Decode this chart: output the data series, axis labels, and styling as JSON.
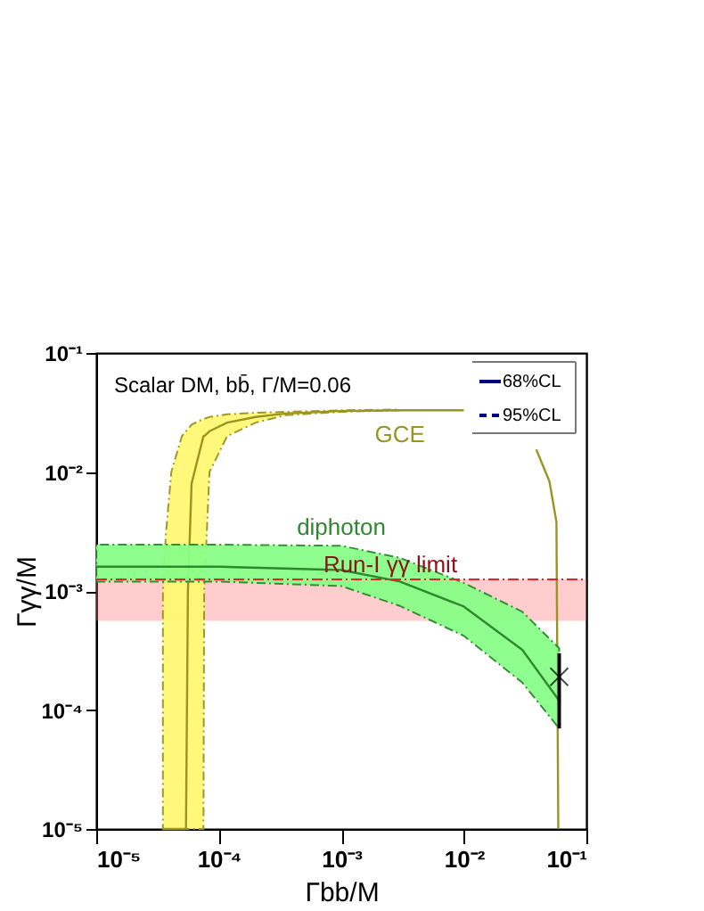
{
  "chart_data": {
    "type": "line",
    "xlabel": "Γbb/M",
    "ylabel": "Γγγ/M",
    "log": "xy",
    "xlim": [
      1e-05,
      0.1
    ],
    "ylim": [
      1e-05,
      0.1
    ],
    "xticks": [
      {
        "value": 1e-05,
        "label": "10⁻⁵"
      },
      {
        "value": 0.0001,
        "label": "10⁻⁴"
      },
      {
        "value": 0.001,
        "label": "10⁻³"
      },
      {
        "value": 0.01,
        "label": "10⁻²"
      },
      {
        "value": 0.1,
        "label": "10⁻¹"
      }
    ],
    "yticks": [
      {
        "value": 1e-05,
        "label": "10⁻⁵"
      },
      {
        "value": 0.0001,
        "label": "10⁻⁴"
      },
      {
        "value": 0.001,
        "label": "10⁻³"
      },
      {
        "value": 0.01,
        "label": "10⁻²"
      },
      {
        "value": 0.1,
        "label": "10⁻¹"
      }
    ],
    "series": [
      {
        "name": "GCE",
        "color": "#9a9422",
        "x": [
          3.5e-05,
          3.7e-05,
          4.1e-05,
          5e-05,
          5.4e-05,
          5.6e-05,
          6e-05,
          7.5e-05,
          7.6e-05,
          8.4e-05,
          0.000117,
          0.0002,
          0.00035,
          0.001,
          0.003,
          0.01,
          0.025,
          0.039,
          0.05,
          0.057,
          0.059
        ],
        "values": [
          1e-05,
          1e-05,
          1e-05,
          1e-05,
          1e-05,
          0.001,
          0.008,
          0.02,
          0.02,
          0.022,
          0.026,
          0.029,
          0.031,
          0.0325,
          0.033,
          0.033,
          null,
          0.0155,
          0.0083,
          0.0038,
          1e-05
        ],
        "lower": [
          1e-05,
          1e-05,
          1e-05,
          1e-05,
          1e-05,
          1e-05,
          1e-05,
          1e-05,
          0.001,
          0.01,
          0.02,
          0.026,
          0.03,
          0.032,
          0.033,
          null,
          null,
          null,
          null,
          null,
          null
        ],
        "upper": [
          0.001,
          0.003,
          0.01,
          0.02,
          0.022,
          0.023,
          0.025,
          0.028,
          0.028,
          0.029,
          0.0305,
          0.0315,
          0.032,
          0.033,
          0.0335,
          null,
          null,
          null,
          null,
          null,
          null
        ]
      },
      {
        "name": "diphoton",
        "color": "#2e882e",
        "x": [
          1e-05,
          0.0001,
          0.001,
          0.003,
          0.01,
          0.03,
          0.06
        ],
        "values": [
          0.0016,
          0.0016,
          0.0015,
          0.0012,
          0.00074,
          0.00032,
          0.00012
        ],
        "lower": [
          0.0012,
          0.0012,
          0.0011,
          0.00075,
          0.00042,
          0.00017,
          7e-05
        ],
        "upper": [
          0.00245,
          0.00245,
          0.0024,
          0.0019,
          0.00117,
          0.00067,
          0.00033
        ]
      },
      {
        "type": "scatter",
        "marker": "cross",
        "color": "#000000",
        "x": [
          0.06
        ],
        "values": [
          0.00019
        ],
        "errors": [
          [
            7e-05,
            0.0003
          ]
        ]
      }
    ],
    "ref_lines": [
      {
        "axis": "y",
        "value": 0.00125,
        "label": "Run-I γγ limit",
        "color": "#e8202a",
        "line_style": "dashed"
      }
    ],
    "bands": [
      {
        "axis": "y",
        "from": 0.00056,
        "to": 0.00125,
        "color": "#ff7070"
      }
    ],
    "annotations": [
      "Scalar DM, bb̄, Γ/M=0.06",
      "68%CL",
      "95%CL"
    ],
    "grid": false
  }
}
